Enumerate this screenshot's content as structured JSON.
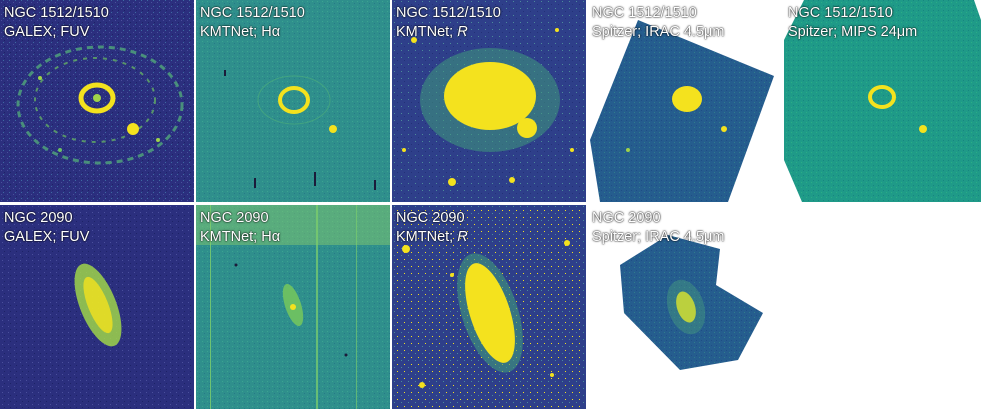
{
  "panels": [
    {
      "id": "p11",
      "line1": "NGC 1512/1510",
      "line2_prefix": "GALEX; FUV",
      "line2_italic": ""
    },
    {
      "id": "p12",
      "line1": "NGC 1512/1510",
      "line2_prefix": "KMTNet; Hα",
      "line2_italic": ""
    },
    {
      "id": "p13",
      "line1": "NGC 1512/1510",
      "line2_prefix": "KMTNet; ",
      "line2_italic": "R"
    },
    {
      "id": "p14",
      "line1": "NGC 1512/1510",
      "line2_prefix": "Spitzer; IRAC 4.5μm",
      "line2_italic": ""
    },
    {
      "id": "p15",
      "line1": "NGC 1512/1510",
      "line2_prefix": "Spitzer; MIPS 24μm",
      "line2_italic": ""
    },
    {
      "id": "p21",
      "line1": "NGC 2090",
      "line2_prefix": "GALEX; FUV",
      "line2_italic": ""
    },
    {
      "id": "p22",
      "line1": "NGC 2090",
      "line2_prefix": "KMTNet; Hα",
      "line2_italic": ""
    },
    {
      "id": "p23",
      "line1": "NGC 2090",
      "line2_prefix": "KMTNet; ",
      "line2_italic": "R"
    },
    {
      "id": "p24",
      "line1": "NGC 2090",
      "line2_prefix": "Spitzer; IRAC 4.5μm",
      "line2_italic": ""
    }
  ],
  "colors": {
    "fuv_bg": "#2b2f7e",
    "halpha_bg": "#2f8f8c",
    "r_bg": "#2e3f8a",
    "irac_bg": "#255d8e",
    "mips_bg": "#1f9a88",
    "bright": "#f4e21e",
    "label": "#ffffff"
  }
}
